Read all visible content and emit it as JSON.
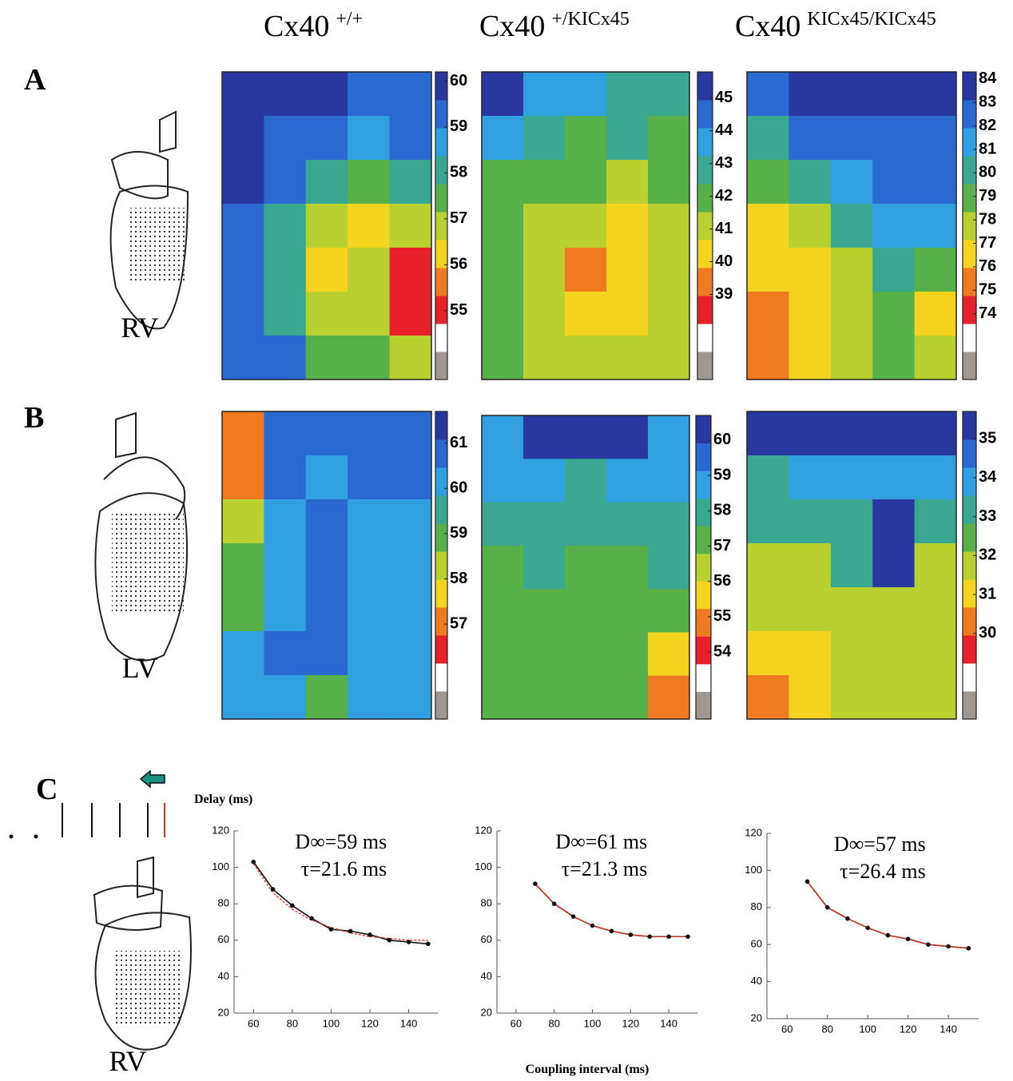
{
  "panel_labels": [
    "A",
    "B",
    "C"
  ],
  "heart_labels": [
    "RV",
    "LV",
    "RV"
  ],
  "column_titles": [
    {
      "base": "Cx40",
      "sup": "+/+"
    },
    {
      "base": "Cx40",
      "sup": "+/KICx45"
    },
    {
      "base": "Cx40",
      "sup": "KICx45/KICx45"
    }
  ],
  "y_axis_label": "Delay (ms)",
  "x_axis_label": "Coupling interval (ms)",
  "chart_data": [
    {
      "type": "heatmap",
      "clim": [
        53.5,
        60.2
      ],
      "colorbar_ticks": [
        55,
        56,
        57,
        58,
        59,
        60
      ],
      "colormap": [
        "#a09890",
        "#ffffff",
        "#e8202a",
        "#f07a20",
        "#f5d420",
        "#b8d030",
        "#58b048",
        "#3aa890",
        "#30a0e0",
        "#2a6ad0",
        "#2838a0"
      ],
      "values": [
        [
          60,
          60,
          60,
          59.5,
          59.5
        ],
        [
          60,
          59,
          59,
          58.5,
          59
        ],
        [
          60,
          59,
          58,
          57.5,
          58
        ],
        [
          59.5,
          58,
          57,
          56.5,
          57
        ],
        [
          59,
          58,
          56.5,
          57,
          55
        ],
        [
          59,
          58,
          57,
          57,
          55
        ],
        [
          59,
          59,
          57.5,
          57.5,
          57
        ]
      ]
    },
    {
      "type": "heatmap",
      "clim": [
        36.4,
        45.8
      ],
      "colorbar_ticks": [
        39,
        40,
        41,
        42,
        43,
        44,
        45
      ],
      "colormap": [
        "#a09890",
        "#ffffff",
        "#e8202a",
        "#f07a20",
        "#f5d420",
        "#b8d030",
        "#58b048",
        "#3aa890",
        "#30a0e0",
        "#2a6ad0",
        "#2838a0"
      ],
      "values": [
        [
          45.5,
          44,
          44,
          43,
          43
        ],
        [
          44,
          43,
          42,
          43,
          42
        ],
        [
          42,
          42,
          42,
          41,
          42
        ],
        [
          42,
          41,
          41,
          40.5,
          41
        ],
        [
          42,
          41,
          39,
          40,
          41
        ],
        [
          42,
          41,
          40,
          40,
          41
        ],
        [
          42,
          41,
          41,
          41,
          41
        ]
      ]
    },
    {
      "type": "heatmap",
      "clim": [
        71.2,
        84.3
      ],
      "colorbar_ticks": [
        74,
        75,
        76,
        77,
        78,
        79,
        80,
        81,
        82,
        83,
        84
      ],
      "colormap": [
        "#a09890",
        "#ffffff",
        "#e8202a",
        "#f07a20",
        "#f5d420",
        "#b8d030",
        "#58b048",
        "#3aa890",
        "#30a0e0",
        "#2a6ad0",
        "#2838a0"
      ],
      "values": [
        [
          83,
          84,
          84,
          84,
          84
        ],
        [
          80,
          82,
          82,
          83,
          83
        ],
        [
          79,
          80,
          81,
          82,
          82
        ],
        [
          77,
          78,
          80,
          81,
          81
        ],
        [
          76,
          77,
          78,
          80,
          79
        ],
        [
          75,
          76,
          78,
          79,
          76
        ],
        [
          75,
          76,
          78,
          79,
          78
        ]
      ]
    },
    {
      "type": "heatmap",
      "clim": [
        54.9,
        61.7
      ],
      "colorbar_ticks": [
        57,
        58,
        59,
        60,
        61
      ],
      "colormap": [
        "#a09890",
        "#ffffff",
        "#e8202a",
        "#f07a20",
        "#f5d420",
        "#b8d030",
        "#58b048",
        "#3aa890",
        "#30a0e0",
        "#2a6ad0",
        "#2838a0"
      ],
      "values": [
        [
          57,
          61,
          61,
          61,
          61
        ],
        [
          57,
          61,
          60,
          61,
          61
        ],
        [
          58,
          60,
          61,
          60,
          60
        ],
        [
          59,
          60,
          61,
          60,
          60
        ],
        [
          59,
          60,
          61,
          60,
          60
        ],
        [
          60,
          61,
          61,
          60,
          60
        ],
        [
          60,
          60,
          59,
          60,
          60
        ]
      ]
    },
    {
      "type": "heatmap",
      "clim": [
        52.1,
        60.7
      ],
      "colorbar_ticks": [
        54,
        55,
        56,
        57,
        58,
        59,
        60
      ],
      "colormap": [
        "#a09890",
        "#ffffff",
        "#e8202a",
        "#f07a20",
        "#f5d420",
        "#b8d030",
        "#58b048",
        "#3aa890",
        "#30a0e0",
        "#2a6ad0",
        "#2838a0"
      ],
      "values": [
        [
          59,
          60,
          60,
          60,
          59
        ],
        [
          59,
          59,
          58,
          59,
          59
        ],
        [
          58,
          58,
          58,
          58,
          58
        ],
        [
          57,
          58,
          57,
          57,
          58
        ],
        [
          57,
          57,
          57,
          57,
          57
        ],
        [
          57,
          57,
          57,
          57,
          56
        ],
        [
          57,
          57,
          57,
          57,
          55
        ]
      ]
    },
    {
      "type": "heatmap",
      "clim": [
        27.8,
        35.7
      ],
      "colorbar_ticks": [
        30,
        31,
        32,
        33,
        34,
        35
      ],
      "colormap": [
        "#a09890",
        "#ffffff",
        "#e8202a",
        "#f07a20",
        "#f5d420",
        "#b8d030",
        "#58b048",
        "#3aa890",
        "#30a0e0",
        "#2a6ad0",
        "#2838a0"
      ],
      "values": [
        [
          35,
          35,
          35,
          35,
          35
        ],
        [
          33,
          34,
          34,
          34,
          34
        ],
        [
          33,
          33,
          33,
          35,
          33
        ],
        [
          32,
          32,
          33,
          35,
          32
        ],
        [
          32,
          32,
          32,
          32,
          32
        ],
        [
          31,
          31,
          32,
          32,
          32
        ],
        [
          30,
          31,
          32,
          32,
          32
        ]
      ]
    },
    {
      "type": "line",
      "xlim": [
        50,
        155
      ],
      "ylim": [
        20,
        120
      ],
      "xticks": [
        60,
        80,
        100,
        120,
        140
      ],
      "yticks": [
        20,
        40,
        60,
        80,
        100,
        120
      ],
      "annotations": [
        "D∞=59 ms",
        "τ=21.6 ms"
      ],
      "x": [
        60,
        70,
        80,
        90,
        100,
        110,
        120,
        130,
        140,
        150
      ],
      "series": [
        {
          "color": "#111111",
          "values": [
            103,
            88,
            79,
            72,
            66,
            65,
            63,
            60,
            59,
            58
          ]
        },
        {
          "color": "#e03020",
          "dashed": true,
          "values": [
            102,
            86,
            77,
            71,
            67,
            64,
            62,
            61,
            60,
            60
          ]
        }
      ]
    },
    {
      "type": "line",
      "xlim": [
        50,
        155
      ],
      "ylim": [
        20,
        120
      ],
      "xticks": [
        60,
        80,
        100,
        120,
        140
      ],
      "yticks": [
        20,
        40,
        60,
        80,
        100,
        120
      ],
      "annotations": [
        "D∞=61 ms",
        "τ=21.3 ms"
      ],
      "x": [
        70,
        80,
        90,
        100,
        110,
        120,
        130,
        140,
        150
      ],
      "series": [
        {
          "color": "#111111",
          "values": [
            91,
            80,
            73,
            68,
            65,
            63,
            62,
            62,
            62
          ]
        },
        {
          "color": "#e03020",
          "dashed": false,
          "values": [
            91,
            80,
            73,
            68,
            65,
            63,
            62,
            62,
            62
          ]
        }
      ]
    },
    {
      "type": "line",
      "xlim": [
        50,
        155
      ],
      "ylim": [
        20,
        120
      ],
      "xticks": [
        60,
        80,
        100,
        120,
        140
      ],
      "yticks": [
        20,
        40,
        60,
        80,
        100,
        120
      ],
      "annotations": [
        "D∞=57 ms",
        "τ=26.4 ms"
      ],
      "x": [
        70,
        80,
        90,
        100,
        110,
        120,
        130,
        140,
        150
      ],
      "series": [
        {
          "color": "#111111",
          "values": [
            94,
            80,
            74,
            69,
            65,
            63,
            60,
            59,
            58
          ]
        },
        {
          "color": "#e03020",
          "dashed": false,
          "values": [
            94,
            80,
            74,
            69,
            65,
            63,
            60,
            59,
            58
          ]
        }
      ]
    }
  ]
}
